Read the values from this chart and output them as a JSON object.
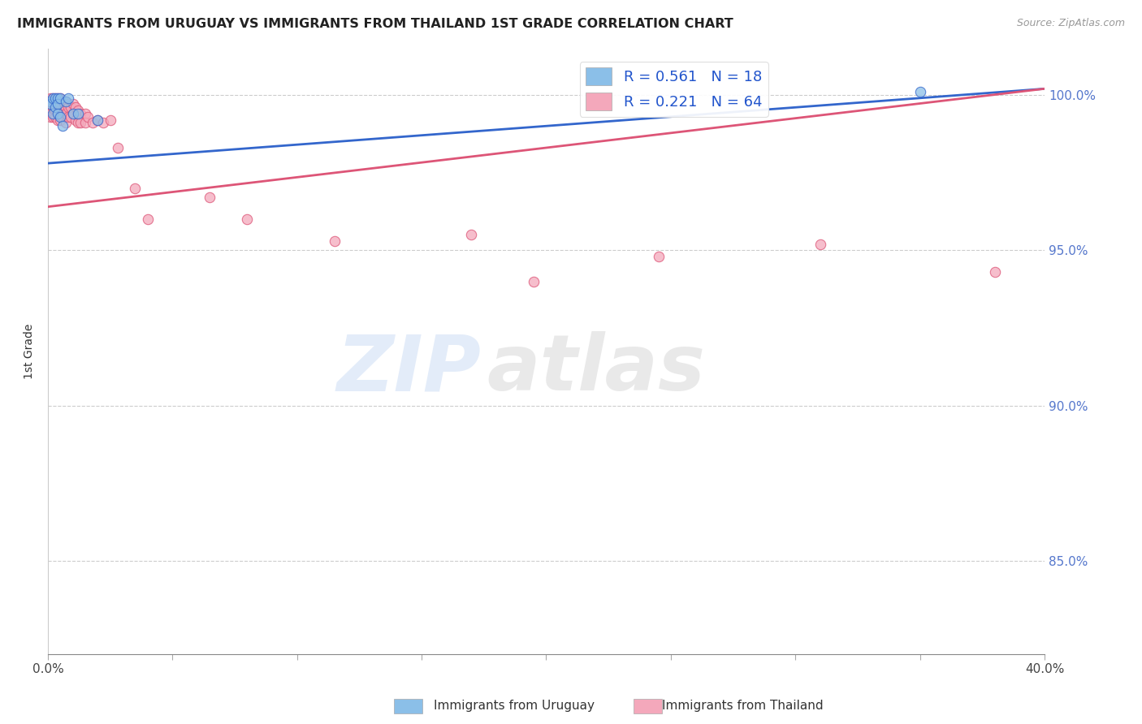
{
  "title": "IMMIGRANTS FROM URUGUAY VS IMMIGRANTS FROM THAILAND 1ST GRADE CORRELATION CHART",
  "source": "Source: ZipAtlas.com",
  "ylabel": "1st Grade",
  "xlim": [
    0.0,
    0.4
  ],
  "ylim": [
    0.82,
    1.015
  ],
  "xticks": [
    0.0,
    0.05,
    0.1,
    0.15,
    0.2,
    0.25,
    0.3,
    0.35,
    0.4
  ],
  "xtick_labels": [
    "0.0%",
    "",
    "",
    "",
    "",
    "",
    "",
    "",
    "40.0%"
  ],
  "yticks_right": [
    0.85,
    0.9,
    0.95,
    1.0
  ],
  "ytick_labels_right": [
    "85.0%",
    "90.0%",
    "95.0%",
    "100.0%"
  ],
  "R_uruguay": 0.561,
  "N_uruguay": 18,
  "R_thailand": 0.221,
  "N_thailand": 64,
  "color_uruguay": "#8bbfe8",
  "color_thailand": "#f4a8bb",
  "line_color_uruguay": "#3366cc",
  "line_color_thailand": "#dd5577",
  "uruguay_line_x": [
    0.0,
    0.4
  ],
  "uruguay_line_y": [
    0.978,
    1.002
  ],
  "thailand_line_x": [
    0.0,
    0.4
  ],
  "thailand_line_y": [
    0.964,
    1.002
  ],
  "uruguay_x": [
    0.001,
    0.001,
    0.002,
    0.002,
    0.003,
    0.003,
    0.004,
    0.004,
    0.004,
    0.005,
    0.005,
    0.006,
    0.007,
    0.008,
    0.01,
    0.012,
    0.02,
    0.35
  ],
  "uruguay_y": [
    0.998,
    0.997,
    0.999,
    0.994,
    0.999,
    0.996,
    0.999,
    0.997,
    0.994,
    0.999,
    0.993,
    0.99,
    0.998,
    0.999,
    0.994,
    0.994,
    0.992,
    1.001
  ],
  "thailand_x": [
    0.001,
    0.001,
    0.001,
    0.001,
    0.001,
    0.001,
    0.002,
    0.002,
    0.002,
    0.002,
    0.002,
    0.003,
    0.003,
    0.003,
    0.003,
    0.003,
    0.004,
    0.004,
    0.004,
    0.004,
    0.004,
    0.005,
    0.005,
    0.005,
    0.005,
    0.006,
    0.006,
    0.006,
    0.006,
    0.007,
    0.007,
    0.007,
    0.007,
    0.008,
    0.008,
    0.008,
    0.009,
    0.009,
    0.01,
    0.01,
    0.011,
    0.011,
    0.012,
    0.012,
    0.013,
    0.013,
    0.015,
    0.015,
    0.016,
    0.018,
    0.02,
    0.022,
    0.025,
    0.028,
    0.035,
    0.04,
    0.065,
    0.08,
    0.115,
    0.17,
    0.195,
    0.245,
    0.31,
    0.38
  ],
  "thailand_y": [
    0.999,
    0.998,
    0.997,
    0.996,
    0.994,
    0.993,
    0.999,
    0.998,
    0.997,
    0.996,
    0.993,
    0.999,
    0.998,
    0.997,
    0.995,
    0.993,
    0.999,
    0.998,
    0.997,
    0.995,
    0.992,
    0.999,
    0.997,
    0.995,
    0.992,
    0.998,
    0.997,
    0.995,
    0.993,
    0.998,
    0.996,
    0.994,
    0.991,
    0.997,
    0.996,
    0.993,
    0.996,
    0.993,
    0.997,
    0.994,
    0.996,
    0.992,
    0.995,
    0.991,
    0.994,
    0.991,
    0.994,
    0.991,
    0.993,
    0.991,
    0.992,
    0.991,
    0.992,
    0.983,
    0.97,
    0.96,
    0.967,
    0.96,
    0.953,
    0.955,
    0.94,
    0.948,
    0.952,
    0.943
  ],
  "watermark_zip": "ZIP",
  "watermark_atlas": "atlas",
  "background_color": "#ffffff",
  "grid_color": "#cccccc"
}
